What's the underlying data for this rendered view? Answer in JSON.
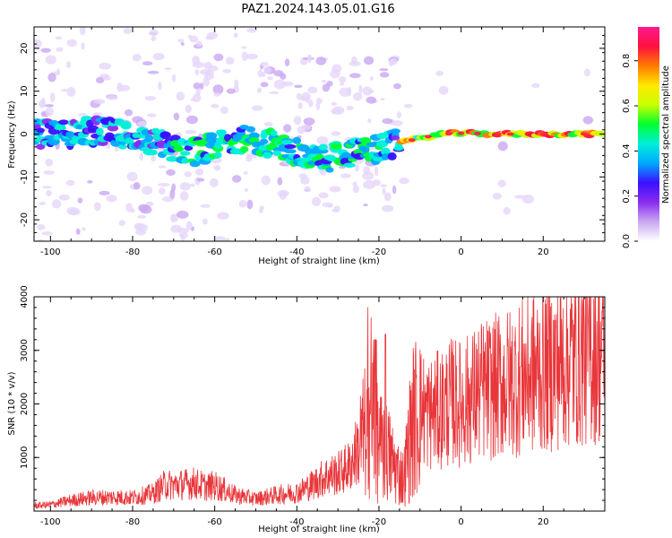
{
  "title": "PAZ1.2024.143.05.01.G16",
  "chart_data": [
    {
      "type": "heatmap",
      "xlabel": "Height of straight line (km)",
      "ylabel": "Frequency (Hz)",
      "xlim": [
        -104,
        35
      ],
      "ylim": [
        -25,
        25
      ],
      "xticks": [
        -100,
        -80,
        -60,
        -40,
        -20,
        0,
        20
      ],
      "yticks": [
        -20,
        -10,
        0,
        10,
        20
      ],
      "colorbar": {
        "label": "Normalized spectral amplitude",
        "ticks": [
          0.0,
          0.2,
          0.4,
          0.6,
          0.8
        ],
        "range": [
          0,
          0.95
        ],
        "colormap": [
          "#ffffff",
          "#c9a8f2",
          "#8a2cf0",
          "#3a10ff",
          "#00a8ff",
          "#00f0d8",
          "#00ff30",
          "#c8ff00",
          "#ffe800",
          "#ff7a00",
          "#ff1040",
          "#ff1a8c"
        ]
      },
      "ridge": [
        {
          "x": -95,
          "f": 1.0
        },
        {
          "x": -88,
          "f": 0.5
        },
        {
          "x": -82,
          "f": 0.0
        },
        {
          "x": -75,
          "f": -2.0
        },
        {
          "x": -70,
          "f": -3.0
        },
        {
          "x": -65,
          "f": -4.0
        },
        {
          "x": -60,
          "f": -3.0
        },
        {
          "x": -55,
          "f": -1.0
        },
        {
          "x": -50,
          "f": -1.5
        },
        {
          "x": -45,
          "f": -2.5
        },
        {
          "x": -40,
          "f": -4.5
        },
        {
          "x": -35,
          "f": -6.0
        },
        {
          "x": -30,
          "f": -5.0
        },
        {
          "x": -25,
          "f": -4.0
        },
        {
          "x": -20,
          "f": -3.5
        },
        {
          "x": -15,
          "f": -2.0
        },
        {
          "x": -10,
          "f": -1.0
        },
        {
          "x": -5,
          "f": 0.0
        },
        {
          "x": 0,
          "f": 0.2
        },
        {
          "x": 10,
          "f": 0.0
        },
        {
          "x": 20,
          "f": 0.0
        },
        {
          "x": 30,
          "f": 0.0
        },
        {
          "x": 35,
          "f": 0.0
        }
      ]
    },
    {
      "type": "line",
      "xlabel": "Height of straight line (km)",
      "ylabel": "SNR (10 * v/v)",
      "xlim": [
        -104,
        35
      ],
      "ylim": [
        0,
        4000
      ],
      "xticks": [
        -100,
        -80,
        -60,
        -40,
        -20,
        0,
        20
      ],
      "yticks": [
        1000,
        2000,
        3000,
        4000
      ],
      "color": "#e8363a",
      "series": [
        {
          "x": [
            -104,
            -100,
            -95,
            -90,
            -85,
            -80,
            -75,
            -72,
            -70,
            -65,
            -62,
            -60,
            -55,
            -50,
            -45,
            -40,
            -36,
            -33,
            -30,
            -27,
            -25,
            -23,
            -22,
            -21,
            -20,
            -18,
            -16,
            -14,
            -12,
            -10,
            -8,
            -5,
            -2,
            0,
            2,
            5,
            10,
            15,
            20,
            25,
            30,
            35
          ],
          "y": [
            100,
            120,
            200,
            250,
            260,
            250,
            330,
            500,
            480,
            520,
            450,
            480,
            300,
            230,
            300,
            350,
            500,
            650,
            700,
            850,
            1200,
            1500,
            2100,
            1500,
            1200,
            1100,
            800,
            600,
            1600,
            1950,
            1800,
            1900,
            2050,
            2000,
            2100,
            2250,
            2350,
            2500,
            2650,
            2800,
            2950,
            3050
          ]
        }
      ]
    }
  ]
}
